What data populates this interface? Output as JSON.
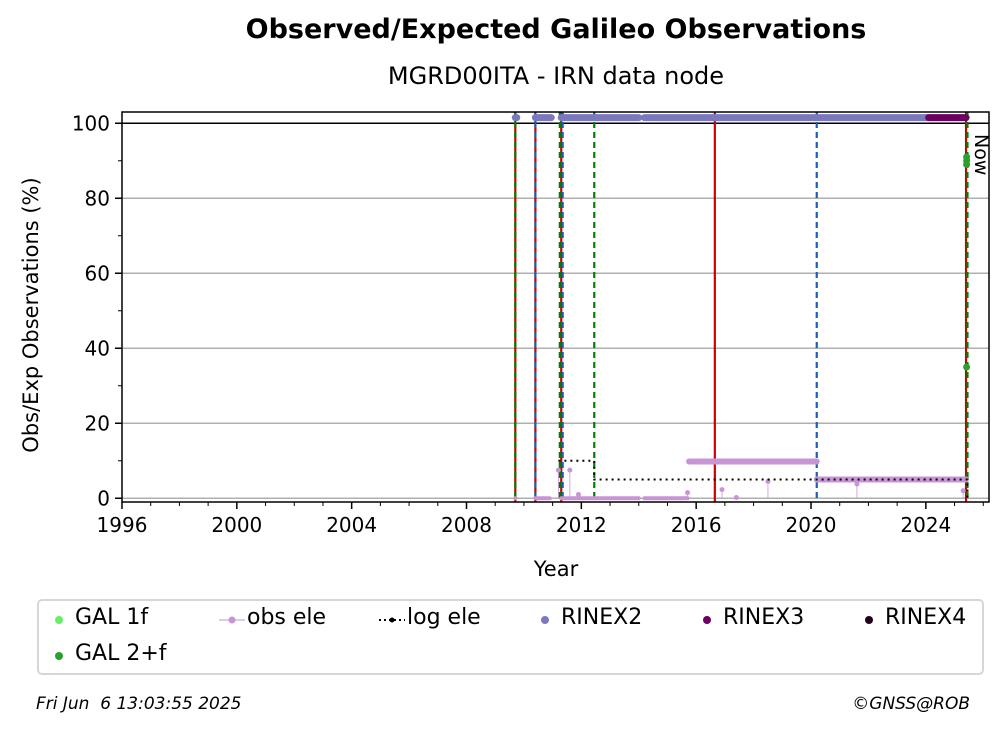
{
  "chart_data": {
    "type": "scatter",
    "title": "Observed/Expected Galileo Observations",
    "subtitle": "MGRD00ITA - IRN data node",
    "xlabel": "Year",
    "ylabel": "Obs/Exp Observations (%)",
    "xlim": [
      1996,
      2026.2
    ],
    "ylim": [
      -1,
      103
    ],
    "xticks": [
      "1996",
      "2000",
      "2004",
      "2008",
      "2012",
      "2016",
      "2020",
      "2024"
    ],
    "yticks": [
      "0",
      "20",
      "40",
      "60",
      "80",
      "100"
    ],
    "grid": "horizontal",
    "now_label": "Now",
    "now_year": 2025.43,
    "vertical_lines": [
      {
        "x": 2009.7,
        "color": "#cc0000",
        "style": "solid"
      },
      {
        "x": 2009.7,
        "color": "#008000",
        "style": "dashed"
      },
      {
        "x": 2010.4,
        "color": "#cc0000",
        "style": "solid"
      },
      {
        "x": 2010.4,
        "color": "#1a5fb4",
        "style": "dashed"
      },
      {
        "x": 2011.3,
        "color": "#cc0000",
        "style": "solid"
      },
      {
        "x": 2011.35,
        "color": "#1a5fb4",
        "style": "dashed"
      },
      {
        "x": 2011.25,
        "color": "#008000",
        "style": "dashed"
      },
      {
        "x": 2012.45,
        "color": "#008000",
        "style": "dashed"
      },
      {
        "x": 2016.65,
        "color": "#cc0000",
        "style": "solid"
      },
      {
        "x": 2020.2,
        "color": "#1a5fb4",
        "style": "dashed"
      },
      {
        "x": 2025.4,
        "color": "#cc0000",
        "style": "solid"
      },
      {
        "x": 2025.45,
        "color": "#008000",
        "style": "dashed"
      }
    ],
    "series": [
      {
        "name": "GAL 1f",
        "color": "#66ee66",
        "points": []
      },
      {
        "name": "GAL 2+f",
        "color": "#2ca02c",
        "points": [
          [
            2025.42,
            91
          ],
          [
            2025.42,
            90
          ],
          [
            2025.42,
            89
          ],
          [
            2025.42,
            35
          ]
        ]
      },
      {
        "name": "obs ele",
        "color": "#c994d6",
        "segments": [
          {
            "x0": 2009.7,
            "x1": 2009.7,
            "y": 0
          },
          {
            "x0": 2010.4,
            "x1": 2010.9,
            "y": 0
          },
          {
            "x0": 2011.3,
            "x1": 2014.0,
            "y": 0
          },
          {
            "x0": 2014.2,
            "x1": 2015.7,
            "y": 0
          },
          {
            "x0": 2015.75,
            "x1": 2020.2,
            "y": 9.8
          },
          {
            "x0": 2020.2,
            "x1": 2025.4,
            "y": 5
          }
        ],
        "outliers": [
          [
            2011.2,
            7.5
          ],
          [
            2011.6,
            7.5
          ],
          [
            2011.9,
            1
          ],
          [
            2015.7,
            1.5
          ],
          [
            2016.9,
            2.3
          ],
          [
            2017.4,
            0.2
          ],
          [
            2018.5,
            4.5
          ],
          [
            2021.6,
            3.8
          ],
          [
            2025.3,
            2
          ]
        ]
      },
      {
        "name": "log ele",
        "color": "#000000",
        "steps": [
          [
            2011.2,
            10
          ],
          [
            2012.45,
            10
          ],
          [
            2012.45,
            5
          ],
          [
            2025.45,
            5
          ],
          [
            2025.45,
            0
          ]
        ]
      },
      {
        "name": "RINEX2",
        "color": "#7b78c0",
        "segments": [
          {
            "x0": 2009.7,
            "x1": 2009.75,
            "y": 101.5
          },
          {
            "x0": 2010.4,
            "x1": 2010.95,
            "y": 101.5
          },
          {
            "x0": 2011.3,
            "x1": 2014.0,
            "y": 101.5
          },
          {
            "x0": 2014.2,
            "x1": 2015.4,
            "y": 101.5
          },
          {
            "x0": 2015.45,
            "x1": 2024.1,
            "y": 101.5
          }
        ]
      },
      {
        "name": "RINEX3",
        "color": "#6b0060",
        "segments": [
          {
            "x0": 2024.1,
            "x1": 2025.4,
            "y": 101.5
          }
        ]
      },
      {
        "name": "RINEX4",
        "color": "#22001a",
        "points": []
      }
    ]
  },
  "footer": {
    "timestamp": "Fri Jun  6 13:03:55 2025",
    "credit": "©GNSS@ROB"
  }
}
